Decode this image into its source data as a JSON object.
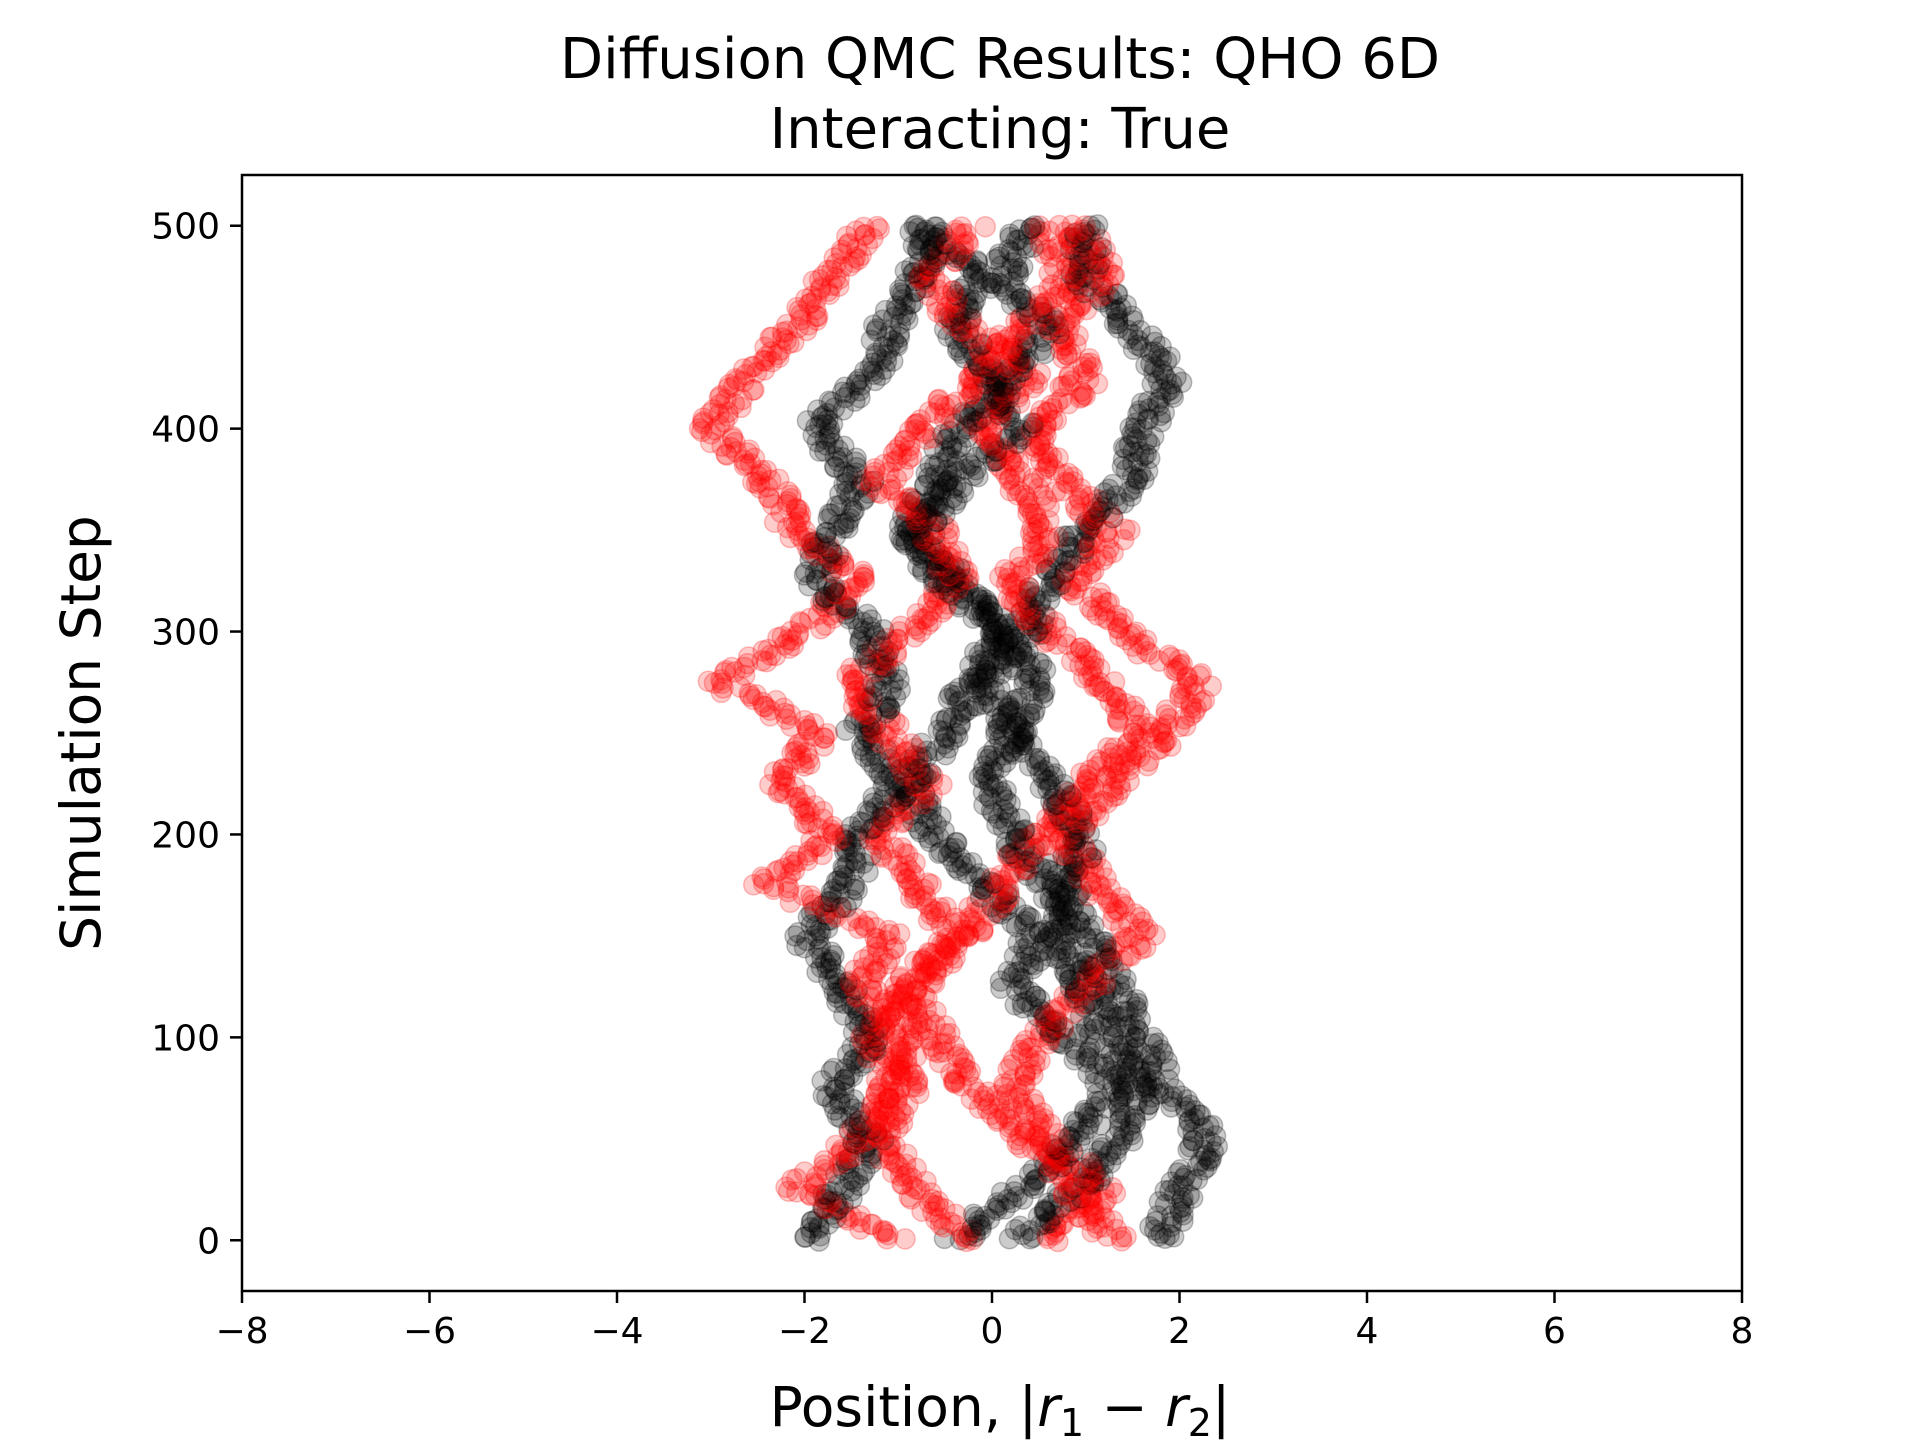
{
  "chart_data": {
    "type": "scatter",
    "title_line1": "Diffusion QMC Results: QHO 6D",
    "title_line2": "Interacting: True",
    "xlabel": "Position, |r1 − r2|",
    "xlabel_parts": {
      "prefix": "Position, |",
      "v1": "r",
      "s1": "1",
      "minus": " − ",
      "v2": "r",
      "s2": "2",
      "suffix": "|"
    },
    "ylabel": "Simulation Step",
    "xlim": [
      -8,
      8
    ],
    "ylim": [
      -25,
      525
    ],
    "xticks": [
      {
        "value": -8,
        "label": "−8"
      },
      {
        "value": -6,
        "label": "−6"
      },
      {
        "value": -4,
        "label": "−4"
      },
      {
        "value": -2,
        "label": "−2"
      },
      {
        "value": 0,
        "label": "0"
      },
      {
        "value": 2,
        "label": "2"
      },
      {
        "value": 4,
        "label": "4"
      },
      {
        "value": 6,
        "label": "6"
      },
      {
        "value": 8,
        "label": "8"
      }
    ],
    "yticks": [
      {
        "value": 0,
        "label": "0"
      },
      {
        "value": 100,
        "label": "100"
      },
      {
        "value": 200,
        "label": "200"
      },
      {
        "value": 300,
        "label": "300"
      },
      {
        "value": 400,
        "label": "400"
      },
      {
        "value": 500,
        "label": "500"
      }
    ],
    "grid": false,
    "marker": "open circle, filled, alpha ~0.2",
    "steps": [
      0,
      500
    ],
    "series": [
      {
        "color": "#000000",
        "walkers": [
          [
            [
              0,
              -1.9
            ],
            [
              25,
              -1.6
            ],
            [
              50,
              -1.3
            ],
            [
              75,
              -1.7
            ],
            [
              100,
              -1.3
            ],
            [
              125,
              -1.6
            ],
            [
              150,
              -2.0
            ],
            [
              175,
              -1.5
            ],
            [
              200,
              -1.4
            ],
            [
              225,
              -1.0
            ],
            [
              250,
              -1.4
            ],
            [
              275,
              -1.1
            ],
            [
              300,
              -1.3
            ],
            [
              325,
              -1.9
            ],
            [
              350,
              -1.7
            ],
            [
              375,
              -1.4
            ],
            [
              400,
              -1.9
            ],
            [
              425,
              -1.3
            ],
            [
              450,
              -1.1
            ],
            [
              475,
              -0.8
            ],
            [
              500,
              -0.6
            ]
          ],
          [
            [
              0,
              1.8
            ],
            [
              25,
              2.0
            ],
            [
              50,
              2.3
            ],
            [
              75,
              1.8
            ],
            [
              100,
              1.6
            ],
            [
              125,
              1.3
            ],
            [
              150,
              1.0
            ],
            [
              175,
              0.6
            ],
            [
              200,
              0.2
            ],
            [
              225,
              0.0
            ],
            [
              250,
              0.2
            ],
            [
              275,
              -0.1
            ],
            [
              300,
              0.4
            ],
            [
              325,
              0.6
            ],
            [
              350,
              1.0
            ],
            [
              375,
              1.5
            ],
            [
              400,
              1.6
            ],
            [
              425,
              1.9
            ],
            [
              450,
              1.5
            ],
            [
              475,
              1.0
            ],
            [
              500,
              1.0
            ]
          ],
          [
            [
              0,
              -0.4
            ],
            [
              25,
              0.3
            ],
            [
              50,
              0.9
            ],
            [
              75,
              1.3
            ],
            [
              100,
              0.8
            ],
            [
              125,
              0.2
            ],
            [
              150,
              0.5
            ],
            [
              175,
              -0.1
            ],
            [
              200,
              -0.6
            ],
            [
              225,
              -0.9
            ],
            [
              250,
              -0.5
            ],
            [
              275,
              -0.2
            ],
            [
              300,
              0.1
            ],
            [
              325,
              -0.4
            ],
            [
              350,
              -0.8
            ],
            [
              375,
              -0.3
            ],
            [
              400,
              0.3
            ],
            [
              425,
              0.0
            ],
            [
              450,
              -0.4
            ],
            [
              475,
              -0.1
            ],
            [
              500,
              -0.8
            ]
          ],
          [
            [
              0,
              0.3
            ],
            [
              25,
              0.9
            ],
            [
              50,
              1.4
            ],
            [
              75,
              1.6
            ],
            [
              100,
              1.2
            ],
            [
              125,
              1.0
            ],
            [
              150,
              0.6
            ],
            [
              175,
              0.8
            ],
            [
              200,
              1.0
            ],
            [
              225,
              0.6
            ],
            [
              250,
              0.2
            ],
            [
              275,
              0.5
            ],
            [
              300,
              0.1
            ],
            [
              325,
              -0.5
            ],
            [
              350,
              -0.9
            ],
            [
              375,
              -0.6
            ],
            [
              400,
              -0.4
            ],
            [
              425,
              0.2
            ],
            [
              450,
              0.6
            ],
            [
              475,
              0.1
            ],
            [
              500,
              0.4
            ]
          ]
        ]
      },
      {
        "color": "#ff0000",
        "walkers": [
          [
            [
              0,
              -1.0
            ],
            [
              25,
              -2.1
            ],
            [
              50,
              -1.4
            ],
            [
              75,
              -1.1
            ],
            [
              100,
              -0.9
            ],
            [
              125,
              -1.4
            ],
            [
              150,
              -1.1
            ],
            [
              175,
              -2.4
            ],
            [
              200,
              -1.7
            ],
            [
              225,
              -2.3
            ],
            [
              250,
              -1.8
            ],
            [
              275,
              -2.9
            ],
            [
              300,
              -2.0
            ],
            [
              325,
              -1.4
            ],
            [
              350,
              -2.1
            ],
            [
              375,
              -2.4
            ],
            [
              400,
              -3.0
            ],
            [
              425,
              -2.6
            ],
            [
              450,
              -2.1
            ],
            [
              475,
              -1.7
            ],
            [
              500,
              -1.3
            ]
          ],
          [
            [
              0,
              1.3
            ],
            [
              25,
              0.9
            ],
            [
              50,
              0.4
            ],
            [
              75,
              -0.2
            ],
            [
              100,
              -0.6
            ],
            [
              125,
              -0.9
            ],
            [
              150,
              -0.4
            ],
            [
              175,
              -0.8
            ],
            [
              200,
              -1.2
            ],
            [
              225,
              -0.7
            ],
            [
              250,
              -1.1
            ],
            [
              275,
              -1.5
            ],
            [
              300,
              -0.9
            ],
            [
              325,
              -0.4
            ],
            [
              350,
              -0.6
            ],
            [
              375,
              -1.2
            ],
            [
              400,
              -0.7
            ],
            [
              425,
              -0.2
            ],
            [
              450,
              0.3
            ],
            [
              475,
              0.8
            ],
            [
              500,
              0.6
            ]
          ],
          [
            [
              0,
              0.6
            ],
            [
              25,
              1.2
            ],
            [
              50,
              0.6
            ],
            [
              75,
              0.2
            ],
            [
              100,
              0.5
            ],
            [
              125,
              1.0
            ],
            [
              150,
              1.6
            ],
            [
              175,
              1.1
            ],
            [
              200,
              0.8
            ],
            [
              225,
              1.3
            ],
            [
              250,
              1.9
            ],
            [
              275,
              2.2
            ],
            [
              300,
              1.4
            ],
            [
              325,
              0.9
            ],
            [
              350,
              1.3
            ],
            [
              375,
              0.7
            ],
            [
              400,
              0.5
            ],
            [
              425,
              1.0
            ],
            [
              450,
              0.7
            ],
            [
              475,
              1.2
            ],
            [
              500,
              0.9
            ]
          ],
          [
            [
              0,
              -0.3
            ],
            [
              25,
              -0.8
            ],
            [
              50,
              -1.2
            ],
            [
              75,
              -0.9
            ],
            [
              100,
              -1.3
            ],
            [
              125,
              -0.8
            ],
            [
              150,
              -0.3
            ],
            [
              175,
              0.1
            ],
            [
              200,
              0.5
            ],
            [
              225,
              1.0
            ],
            [
              250,
              1.6
            ],
            [
              275,
              1.2
            ],
            [
              300,
              0.6
            ],
            [
              325,
              0.2
            ],
            [
              350,
              0.6
            ],
            [
              375,
              0.3
            ],
            [
              400,
              -0.1
            ],
            [
              425,
              0.4
            ],
            [
              450,
              -0.3
            ],
            [
              475,
              -0.7
            ],
            [
              500,
              -0.2
            ]
          ]
        ]
      }
    ]
  }
}
